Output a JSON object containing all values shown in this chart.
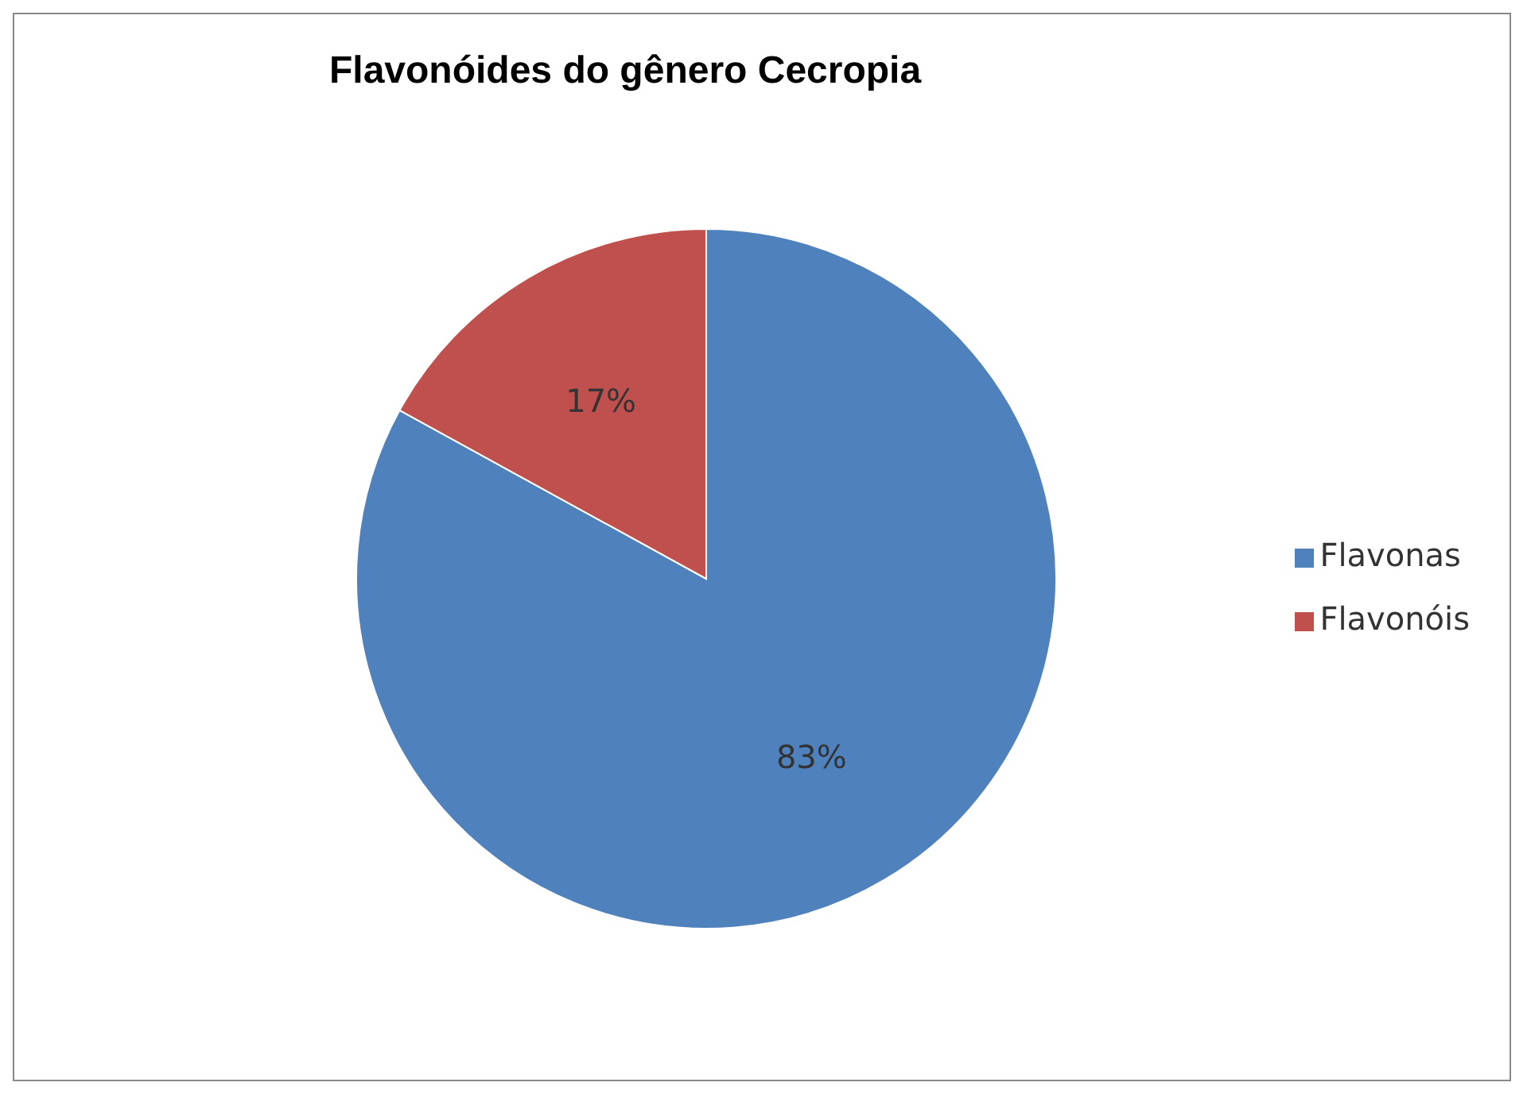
{
  "chart_data": {
    "type": "pie",
    "title": "Flavonóides do gênero Cecropia",
    "categories": [
      "Flavonas",
      "Flavonóis"
    ],
    "values": [
      83,
      17
    ],
    "colors": [
      "#4f81bd",
      "#c0504d"
    ],
    "value_labels": [
      "83%",
      "17%"
    ],
    "legend": "right"
  }
}
